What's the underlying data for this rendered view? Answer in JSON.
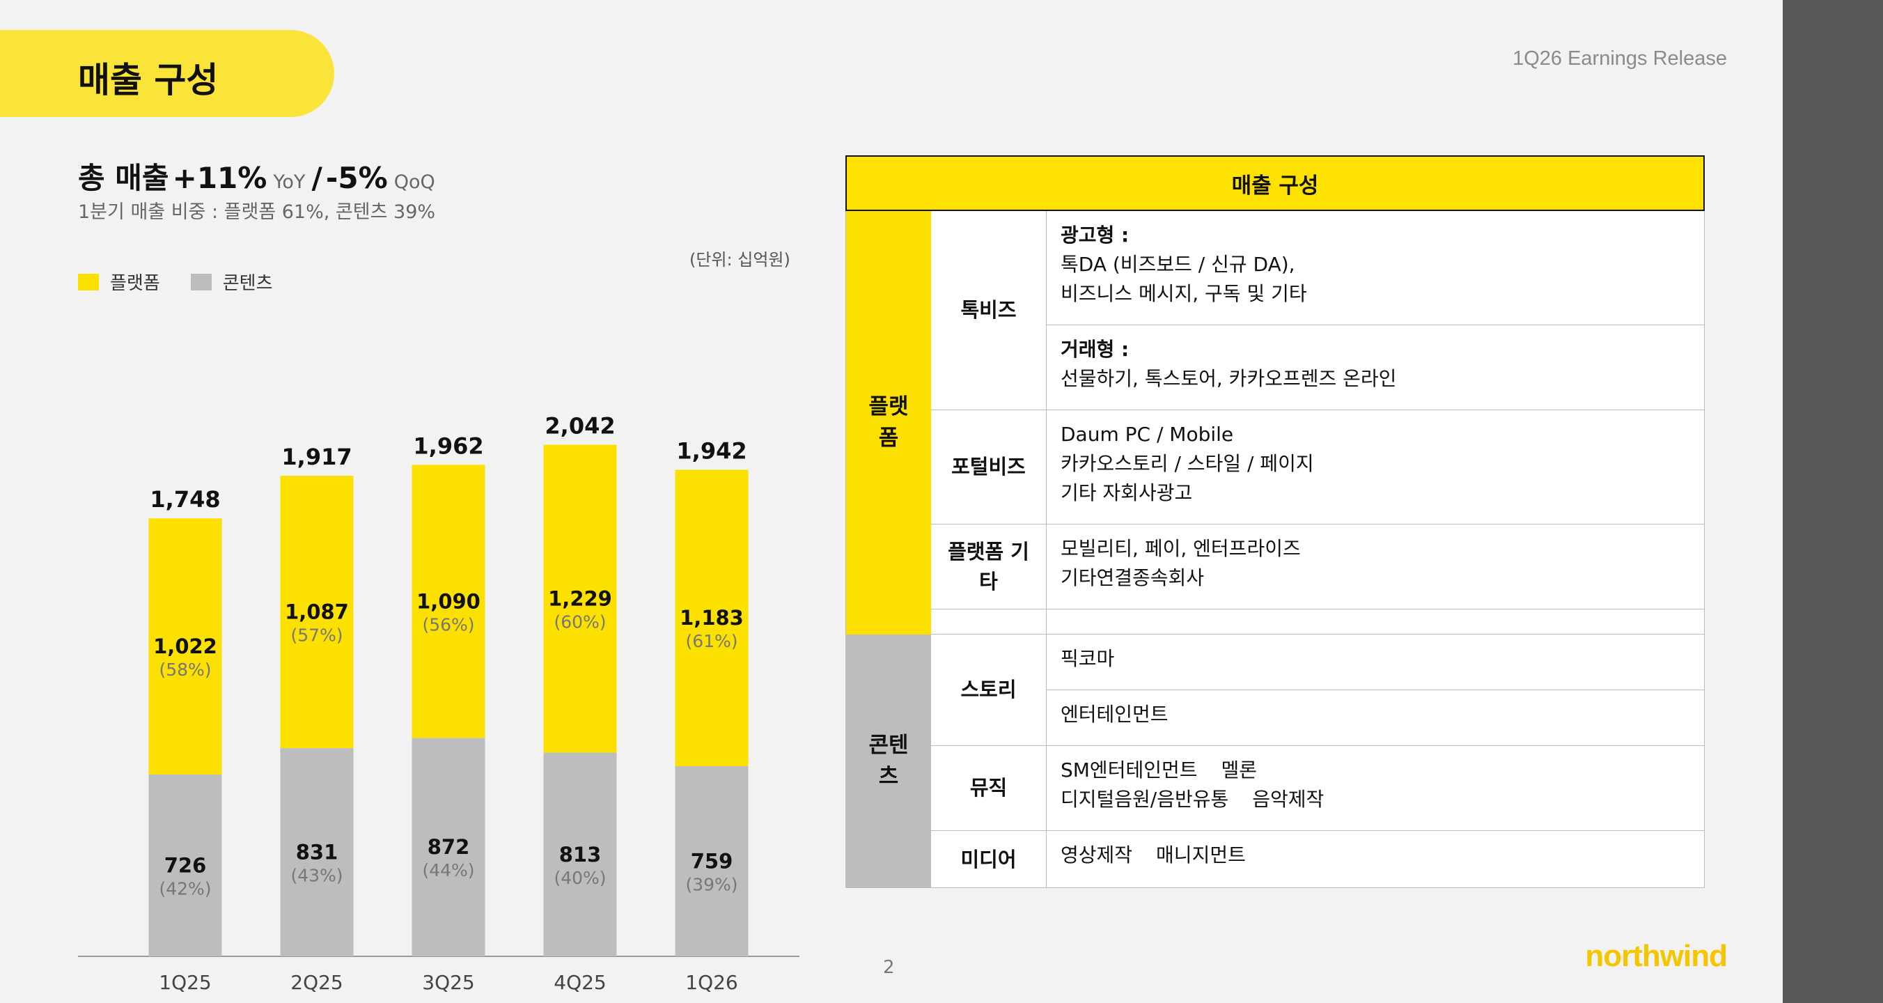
{
  "page": {
    "title": "매출 구성",
    "release": "1Q26 Earnings Release",
    "page_number": "2",
    "logo": "northwind"
  },
  "headline": {
    "prefix": "총 매출",
    "yoy_value": "+11%",
    "yoy_label": "YoY",
    "separator": "/",
    "qoq_value": "-5%",
    "qoq_label": "QoQ",
    "subline": "1분기 매출 비중 : 플랫폼 61%, 콘텐츠 39%",
    "unit": "(단위: 십억원)"
  },
  "colors": {
    "platform": "#fbe000",
    "contents": "#bdbdbd",
    "accent": "#fbe43a",
    "logo": "#f5c500"
  },
  "chart_data": {
    "type": "bar",
    "stacked": true,
    "categories": [
      "1Q25",
      "2Q25",
      "3Q25",
      "4Q25",
      "1Q26"
    ],
    "series": [
      {
        "name": "플랫폼",
        "values": [
          1022,
          1087,
          1090,
          1229,
          1183
        ],
        "shares": [
          "(58%)",
          "(57%)",
          "(56%)",
          "(60%)",
          "(61%)"
        ]
      },
      {
        "name": "콘텐츠",
        "values": [
          726,
          831,
          872,
          813,
          759
        ],
        "shares": [
          "(42%)",
          "(43%)",
          "(44%)",
          "(40%)",
          "(39%)"
        ]
      }
    ],
    "totals": [
      1748,
      1917,
      1962,
      2042,
      1942
    ],
    "legend": "top-left",
    "grid": false
  },
  "table": {
    "header": "매출 구성",
    "platform_label": "플랫\n폼",
    "contents_label": "콘텐\n츠",
    "talkbiz_label": "톡비즈",
    "ad_title": "광고형 :",
    "ad_line1": "톡DA (비즈보드 / 신규 DA),",
    "ad_line2": "비즈니스 메시지, 구독 및 기타",
    "trade_title": "거래형 :",
    "trade_line1": "선물하기, 톡스토어, 카카오프렌즈 온라인",
    "portal_label": "포털비즈",
    "portal_line1": "Daum PC / Mobile",
    "portal_line2": "카카오스토리 / 스타일 / 페이지",
    "portal_line3": "기타 자회사광고",
    "platform_etc_label": "플랫폼 기\n타",
    "etc_line1": "모빌리티, 페이, 엔터프라이즈",
    "etc_line2": "기타연결종속회사",
    "story_label": "스토리",
    "story_item1": "픽코마",
    "story_item2": "엔터테인먼트",
    "music_label": "뮤직",
    "music_item1": "SM엔터테인먼트",
    "music_item2": "멜론",
    "music_item3": "디지털음원/음반유통",
    "music_item4": "음악제작",
    "media_label": "미디어",
    "media_item1": "영상제작",
    "media_item2": "매니지먼트"
  }
}
